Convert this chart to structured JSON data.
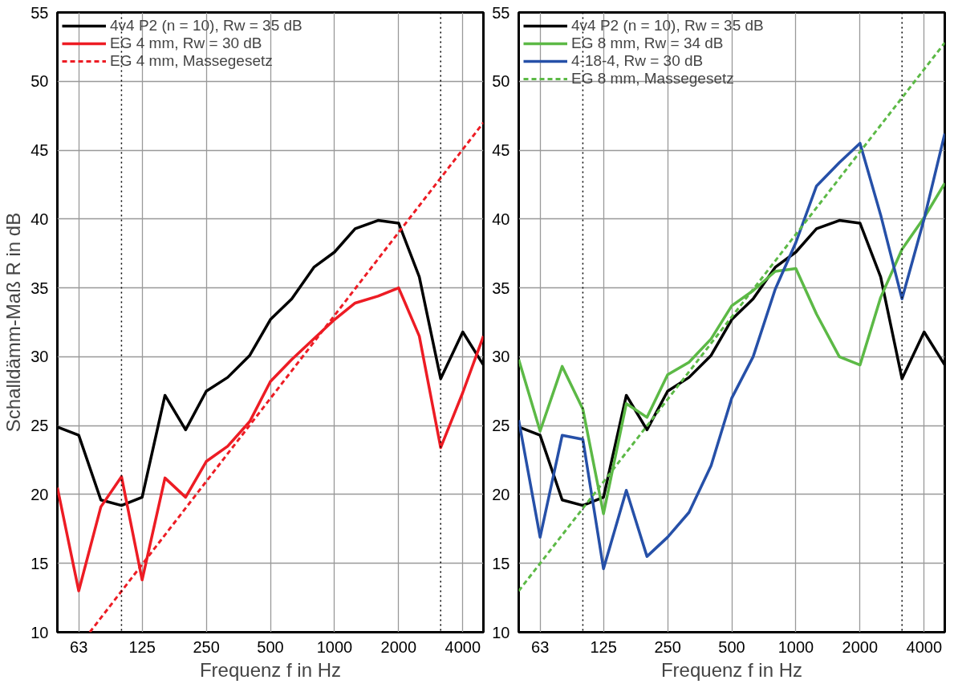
{
  "chart_data": [
    {
      "type": "line",
      "xlabel": "Frequenz f in Hz",
      "ylabel": "Schalldämm-Maß R in dB",
      "log": "x",
      "xlim": [
        50,
        5000
      ],
      "ylim": [
        10,
        55
      ],
      "xticks": [
        63,
        125,
        250,
        500,
        1000,
        2000,
        4000
      ],
      "yticks": [
        10,
        15,
        20,
        25,
        30,
        35,
        40,
        45,
        50,
        55
      ],
      "grid": true,
      "legend": "top left",
      "x": [
        50,
        63,
        80,
        100,
        125,
        160,
        200,
        250,
        315,
        400,
        500,
        630,
        800,
        1000,
        1250,
        1600,
        2000,
        2500,
        3150,
        4000,
        5000
      ],
      "ref_lines": [
        {
          "axis": "x",
          "value": 100,
          "color": "#000000",
          "line_style": "dotted"
        },
        {
          "axis": "x",
          "value": 3150,
          "color": "#000000",
          "line_style": "dotted"
        }
      ],
      "series": [
        {
          "name": "4v4 P2 (n = 10), Rw = 35 dB",
          "color": "#000000",
          "line_style": "solid",
          "values": [
            24.9,
            24.3,
            19.6,
            19.2,
            19.8,
            27.2,
            24.7,
            27.5,
            28.5,
            30.1,
            32.7,
            34.2,
            36.5,
            37.6,
            39.3,
            39.9,
            39.7,
            35.8,
            28.4,
            31.8,
            29.4
          ]
        },
        {
          "name": "EG 4 mm, Rw = 30 dB",
          "color": "#ed1c24",
          "line_style": "solid",
          "values": [
            20.5,
            13.0,
            19.1,
            21.3,
            13.8,
            21.2,
            19.8,
            22.4,
            23.5,
            25.3,
            28.2,
            29.8,
            31.3,
            32.7,
            33.9,
            34.4,
            35.0,
            31.5,
            23.4,
            27.4,
            31.5
          ]
        },
        {
          "name": "EG 4 mm, Massegesetz",
          "color": "#ed1c24",
          "line_style": "dashed",
          "x": [
            71,
            5000
          ],
          "values": [
            10,
            47
          ]
        }
      ]
    },
    {
      "type": "line",
      "xlabel": "Frequenz f in Hz",
      "log": "x",
      "xlim": [
        50,
        5000
      ],
      "ylim": [
        10,
        55
      ],
      "xticks": [
        63,
        125,
        250,
        500,
        1000,
        2000,
        4000
      ],
      "yticks": [
        10,
        15,
        20,
        25,
        30,
        35,
        40,
        45,
        50,
        55
      ],
      "grid": true,
      "legend": "top left",
      "x": [
        50,
        63,
        80,
        100,
        125,
        160,
        200,
        250,
        315,
        400,
        500,
        630,
        800,
        1000,
        1250,
        1600,
        2000,
        2500,
        3150,
        4000,
        5000
      ],
      "ref_lines": [
        {
          "axis": "x",
          "value": 100,
          "color": "#000000",
          "line_style": "dotted"
        },
        {
          "axis": "x",
          "value": 3150,
          "color": "#000000",
          "line_style": "dotted"
        }
      ],
      "series": [
        {
          "name": "4v4 P2 (n = 10), Rw = 35 dB",
          "color": "#000000",
          "line_style": "solid",
          "values": [
            24.9,
            24.3,
            19.6,
            19.2,
            19.8,
            27.2,
            24.7,
            27.5,
            28.5,
            30.1,
            32.7,
            34.2,
            36.5,
            37.6,
            39.3,
            39.9,
            39.7,
            35.8,
            28.4,
            31.8,
            29.4
          ]
        },
        {
          "name": "EG 8 mm, Rw = 34 dB",
          "color": "#5cb946",
          "line_style": "solid",
          "values": [
            29.8,
            24.6,
            29.3,
            26.2,
            18.6,
            26.6,
            25.6,
            28.7,
            29.6,
            31.3,
            33.7,
            34.8,
            36.2,
            36.4,
            33.1,
            30.0,
            29.4,
            34.3,
            37.8,
            40.1,
            42.6
          ]
        },
        {
          "name": "4-18-4, Rw = 30 dB",
          "color": "#2650a8",
          "line_style": "solid",
          "values": [
            25.4,
            16.9,
            24.3,
            24.0,
            14.6,
            20.3,
            15.5,
            16.9,
            18.7,
            22.1,
            27.0,
            30.0,
            34.9,
            38.3,
            42.4,
            44.1,
            45.5,
            40.3,
            34.2,
            40.0,
            46.2
          ]
        },
        {
          "name": "EG 8 mm, Massegesetz",
          "color": "#5cb946",
          "line_style": "dashed",
          "x": [
            50,
            5000
          ],
          "values": [
            13.0,
            52.8
          ]
        }
      ]
    }
  ]
}
